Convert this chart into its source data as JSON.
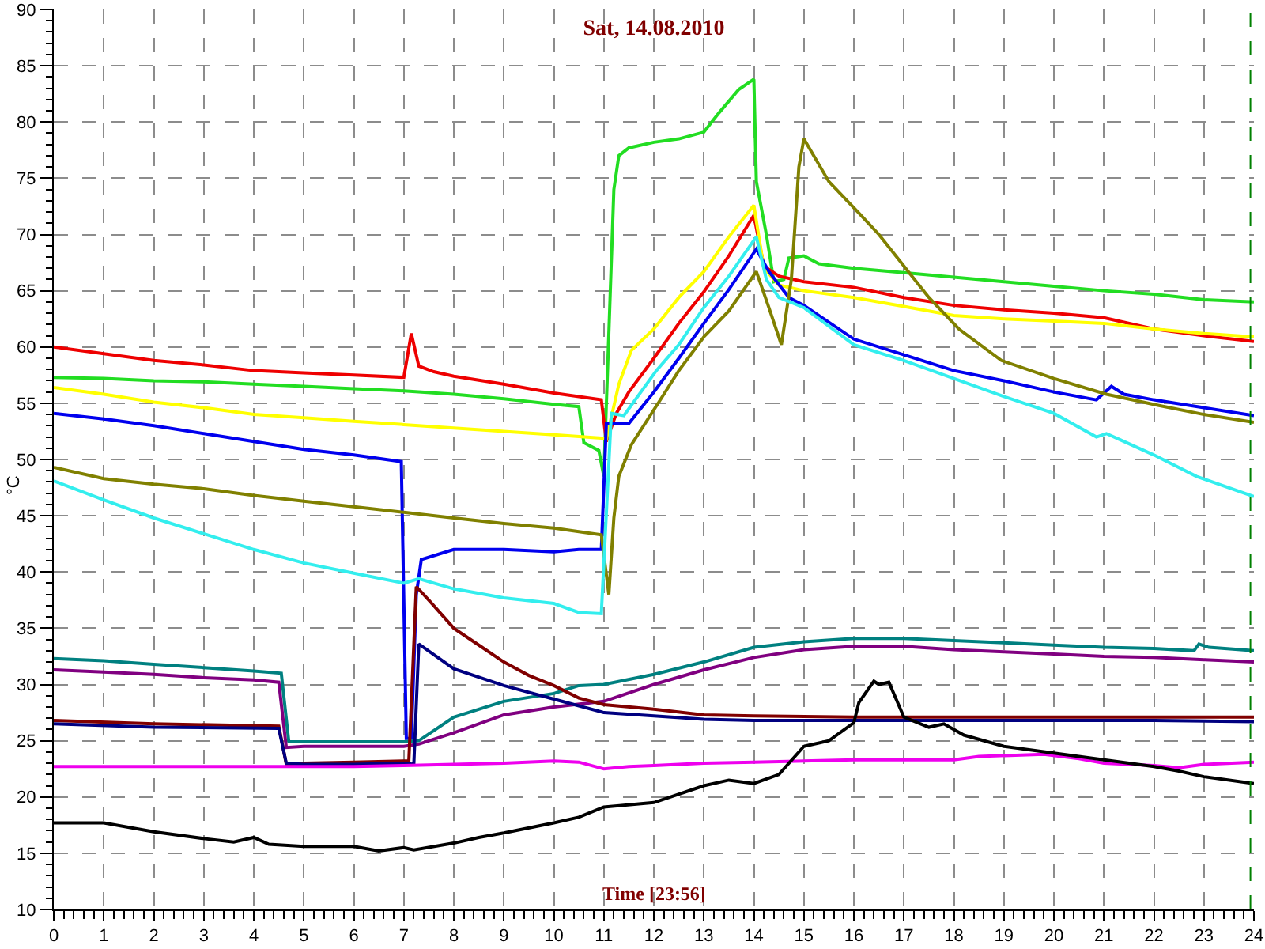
{
  "chart_data": {
    "type": "line",
    "title": "Sat, 14.08.2010",
    "xlabel": "Time [23:56]",
    "ylabel": "°C",
    "xlim": [
      0,
      24
    ],
    "xticks": [
      0,
      {
        "value": 0.2,
        "label": null
      },
      {
        "value": 0.4,
        "label": null
      },
      {
        "value": 0.6,
        "label": null
      },
      {
        "value": 0.8,
        "label": null
      },
      1,
      {
        "value": 1.2,
        "label": null
      },
      {
        "value": 1.4,
        "label": null
      },
      {
        "value": 1.6,
        "label": null
      },
      {
        "value": 1.8,
        "label": null
      },
      2,
      {
        "value": 2.2,
        "label": null
      },
      {
        "value": 2.4,
        "label": null
      },
      {
        "value": 2.6,
        "label": null
      },
      {
        "value": 2.8,
        "label": null
      },
      3,
      {
        "value": 3.2,
        "label": null
      },
      {
        "value": 3.4,
        "label": null
      },
      {
        "value": 3.6,
        "label": null
      },
      {
        "value": 3.8,
        "label": null
      },
      4,
      {
        "value": 4.2,
        "label": null
      },
      {
        "value": 4.4,
        "label": null
      },
      {
        "value": 4.6,
        "label": null
      },
      {
        "value": 4.8,
        "label": null
      },
      5,
      {
        "value": 5.2,
        "label": null
      },
      {
        "value": 5.4,
        "label": null
      },
      {
        "value": 5.6,
        "label": null
      },
      {
        "value": 5.8,
        "label": null
      },
      6,
      {
        "value": 6.2,
        "label": null
      },
      {
        "value": 6.4,
        "label": null
      },
      {
        "value": 6.6,
        "label": null
      },
      {
        "value": 6.8,
        "label": null
      },
      7,
      {
        "value": 7.2,
        "label": null
      },
      {
        "value": 7.4,
        "label": null
      },
      {
        "value": 7.6,
        "label": null
      },
      {
        "value": 7.8,
        "label": null
      },
      8,
      {
        "value": 8.2,
        "label": null
      },
      {
        "value": 8.4,
        "label": null
      },
      {
        "value": 8.6,
        "label": null
      },
      {
        "value": 8.8,
        "label": null
      },
      9,
      {
        "value": 9.2,
        "label": null
      },
      {
        "value": 9.4,
        "label": null
      },
      {
        "value": 9.6,
        "label": null
      },
      {
        "value": 9.8,
        "label": null
      },
      10,
      {
        "value": 10.2,
        "label": null
      },
      {
        "value": 10.4,
        "label": null
      },
      {
        "value": 10.6,
        "label": null
      },
      {
        "value": 10.8,
        "label": null
      },
      11,
      {
        "value": 11.2,
        "label": null
      },
      {
        "value": 11.4,
        "label": null
      },
      {
        "value": 11.6,
        "label": null
      },
      {
        "value": 11.8,
        "label": null
      },
      12,
      {
        "value": 12.2,
        "label": null
      },
      {
        "value": 12.4,
        "label": null
      },
      {
        "value": 12.6,
        "label": null
      },
      {
        "value": 12.8,
        "label": null
      },
      13,
      {
        "value": 13.2,
        "label": null
      },
      {
        "value": 13.4,
        "label": null
      },
      {
        "value": 13.6,
        "label": null
      },
      {
        "value": 13.8,
        "label": null
      },
      14,
      {
        "value": 14.2,
        "label": null
      },
      {
        "value": 14.4,
        "label": null
      },
      {
        "value": 14.6,
        "label": null
      },
      {
        "value": 14.8,
        "label": null
      },
      15,
      {
        "value": 15.2,
        "label": null
      },
      {
        "value": 15.4,
        "label": null
      },
      {
        "value": 15.6,
        "label": null
      },
      {
        "value": 15.8,
        "label": null
      },
      16,
      {
        "value": 16.2,
        "label": null
      },
      {
        "value": 16.4,
        "label": null
      },
      {
        "value": 16.6,
        "label": null
      },
      {
        "value": 16.8,
        "label": null
      },
      17,
      {
        "value": 17.2,
        "label": null
      },
      {
        "value": 17.4,
        "label": null
      },
      {
        "value": 17.6,
        "label": null
      },
      {
        "value": 17.8,
        "label": null
      },
      18,
      {
        "value": 18.2,
        "label": null
      },
      {
        "value": 18.4,
        "label": null
      },
      {
        "value": 18.6,
        "label": null
      },
      {
        "value": 18.8,
        "label": null
      },
      19,
      {
        "value": 19.2,
        "label": null
      },
      {
        "value": 19.4,
        "label": null
      },
      {
        "value": 19.6,
        "label": null
      },
      {
        "value": 19.8,
        "label": null
      },
      20,
      {
        "value": 20.2,
        "label": null
      },
      {
        "value": 20.4,
        "label": null
      },
      {
        "value": 20.6,
        "label": null
      },
      {
        "value": 20.8,
        "label": null
      },
      21,
      {
        "value": 21.2,
        "label": null
      },
      {
        "value": 21.4,
        "label": null
      },
      {
        "value": 21.6,
        "label": null
      },
      {
        "value": 21.8,
        "label": null
      },
      22,
      {
        "value": 22.2,
        "label": null
      },
      {
        "value": 22.4,
        "label": null
      },
      {
        "value": 22.6,
        "label": null
      },
      {
        "value": 22.8,
        "label": null
      },
      23,
      {
        "value": 23.2,
        "label": null
      },
      {
        "value": 23.4,
        "label": null
      },
      {
        "value": 23.6,
        "label": null
      },
      {
        "value": 23.8,
        "label": null
      },
      24
    ],
    "ylim": [
      10,
      90
    ],
    "yticks": [
      10,
      {
        "value": 11,
        "label": null
      },
      {
        "value": 12,
        "label": null
      },
      {
        "value": 13,
        "label": null
      },
      {
        "value": 14,
        "label": null
      },
      15,
      {
        "value": 16,
        "label": null
      },
      {
        "value": 17,
        "label": null
      },
      {
        "value": 18,
        "label": null
      },
      {
        "value": 19,
        "label": null
      },
      20,
      {
        "value": 21,
        "label": null
      },
      {
        "value": 22,
        "label": null
      },
      {
        "value": 23,
        "label": null
      },
      {
        "value": 24,
        "label": null
      },
      25,
      {
        "value": 26,
        "label": null
      },
      {
        "value": 27,
        "label": null
      },
      {
        "value": 28,
        "label": null
      },
      {
        "value": 29,
        "label": null
      },
      30,
      {
        "value": 31,
        "label": null
      },
      {
        "value": 32,
        "label": null
      },
      {
        "value": 33,
        "label": null
      },
      {
        "value": 34,
        "label": null
      },
      35,
      {
        "value": 36,
        "label": null
      },
      {
        "value": 37,
        "label": null
      },
      {
        "value": 38,
        "label": null
      },
      {
        "value": 39,
        "label": null
      },
      40,
      {
        "value": 41,
        "label": null
      },
      {
        "value": 42,
        "label": null
      },
      {
        "value": 43,
        "label": null
      },
      {
        "value": 44,
        "label": null
      },
      45,
      {
        "value": 46,
        "label": null
      },
      {
        "value": 47,
        "label": null
      },
      {
        "value": 48,
        "label": null
      },
      {
        "value": 49,
        "label": null
      },
      50,
      {
        "value": 51,
        "label": null
      },
      {
        "value": 52,
        "label": null
      },
      {
        "value": 53,
        "label": null
      },
      {
        "value": 54,
        "label": null
      },
      55,
      {
        "value": 56,
        "label": null
      },
      {
        "value": 57,
        "label": null
      },
      {
        "value": 58,
        "label": null
      },
      {
        "value": 59,
        "label": null
      },
      60,
      {
        "value": 61,
        "label": null
      },
      {
        "value": 62,
        "label": null
      },
      {
        "value": 63,
        "label": null
      },
      {
        "value": 64,
        "label": null
      },
      65,
      {
        "value": 66,
        "label": null
      },
      {
        "value": 67,
        "label": null
      },
      {
        "value": 68,
        "label": null
      },
      {
        "value": 69,
        "label": null
      },
      70,
      {
        "value": 71,
        "label": null
      },
      {
        "value": 72,
        "label": null
      },
      {
        "value": 73,
        "label": null
      },
      {
        "value": 74,
        "label": null
      },
      75,
      {
        "value": 76,
        "label": null
      },
      {
        "value": 77,
        "label": null
      },
      {
        "value": 78,
        "label": null
      },
      {
        "value": 79,
        "label": null
      },
      80,
      {
        "value": 81,
        "label": null
      },
      {
        "value": 82,
        "label": null
      },
      {
        "value": 83,
        "label": null
      },
      {
        "value": 84,
        "label": null
      },
      85,
      {
        "value": 86,
        "label": null
      },
      {
        "value": 87,
        "label": null
      },
      {
        "value": 88,
        "label": null
      },
      {
        "value": 89,
        "label": null
      },
      90
    ],
    "grid": true,
    "ref_lines": [
      {
        "axis": "x",
        "value": 23.93,
        "color": "#008000",
        "line_style": "dashed"
      }
    ],
    "series": [
      {
        "color": "#22dd22",
        "x": [
          0,
          1,
          2,
          3,
          4,
          5,
          6,
          7,
          8,
          9,
          10,
          10.5,
          10.6,
          10.9,
          11.0,
          11.2,
          11.3,
          11.5,
          12,
          12.5,
          13,
          13.3,
          13.7,
          14.0,
          14.05,
          14.25,
          14.4,
          14.6,
          14.7,
          15,
          15.3,
          16,
          17,
          18,
          19,
          20,
          21,
          22,
          23,
          24
        ],
        "values": [
          57.3,
          57.2,
          57,
          56.9,
          56.7,
          56.5,
          56.3,
          56.1,
          55.8,
          55.4,
          54.9,
          54.7,
          51.5,
          50.8,
          48.5,
          74,
          77,
          77.7,
          78.2,
          78.5,
          79.1,
          80.8,
          82.9,
          83.8,
          74.7,
          70,
          65.8,
          66,
          67.9,
          68.1,
          67.4,
          67,
          66.6,
          66.2,
          65.8,
          65.4,
          65,
          64.7,
          64.2,
          64
        ]
      },
      {
        "color": "#ee0000",
        "x": [
          0,
          1,
          2,
          3,
          4,
          5,
          6,
          7,
          7.15,
          7.3,
          7.6,
          8,
          9,
          10,
          10.95,
          11.05,
          11.25,
          11.5,
          12,
          12.5,
          13,
          13.5,
          14.0,
          14.2,
          14.5,
          15,
          16,
          17,
          18,
          19,
          20,
          21,
          22,
          23,
          24
        ],
        "values": [
          60,
          59.4,
          58.8,
          58.4,
          57.9,
          57.7,
          57.5,
          57.3,
          61.2,
          58.3,
          57.8,
          57.4,
          56.7,
          55.9,
          55.3,
          51.6,
          54.1,
          56,
          59,
          62.1,
          64.9,
          68.1,
          71.7,
          67.2,
          66.3,
          65.8,
          65.3,
          64.4,
          63.7,
          63.3,
          63,
          62.6,
          61.6,
          61,
          60.5
        ]
      },
      {
        "color": "#ffff00",
        "x": [
          0,
          1,
          2,
          3,
          4,
          5,
          6,
          7,
          8,
          9,
          10,
          10.95,
          11.05,
          11.3,
          11.55,
          12,
          12.5,
          13,
          13.5,
          14.0,
          14.2,
          14.5,
          15,
          16,
          17,
          18,
          19,
          20,
          21,
          22,
          23,
          24
        ],
        "values": [
          56.4,
          55.8,
          55.1,
          54.6,
          54,
          53.7,
          53.4,
          53.1,
          52.8,
          52.5,
          52.2,
          51.9,
          51.8,
          56.7,
          59.7,
          61.6,
          64.4,
          66.7,
          69.8,
          72.6,
          67,
          65.5,
          65,
          64.4,
          63.6,
          62.8,
          62.5,
          62.3,
          62.1,
          61.6,
          61.2,
          60.9
        ]
      },
      {
        "color": "#0000ee",
        "x": [
          0,
          1,
          2,
          3,
          4,
          5,
          6,
          6.95,
          7.05,
          7.15,
          7.25,
          7.35,
          8,
          9,
          10,
          10.5,
          10.95,
          11.05,
          11.5,
          12,
          12.5,
          13,
          13.5,
          14.05,
          14.3,
          14.7,
          15,
          16,
          17,
          18,
          19,
          20,
          20.85,
          21.15,
          21.4,
          22,
          23,
          24
        ],
        "values": [
          54.1,
          53.6,
          53,
          52.3,
          51.6,
          50.9,
          50.4,
          49.8,
          25.2,
          25.2,
          38,
          41.1,
          42,
          42,
          41.8,
          42,
          42,
          53.2,
          53.2,
          56,
          59,
          62.1,
          65.1,
          68.7,
          66.7,
          64.4,
          63.7,
          60.7,
          59.3,
          57.9,
          57,
          56,
          55.3,
          56.5,
          55.8,
          55.3,
          54.6,
          53.9
        ]
      },
      {
        "color": "#808000",
        "x": [
          0,
          1,
          2,
          3,
          4,
          5,
          6,
          7,
          8,
          9,
          10,
          10.95,
          11.1,
          11.2,
          11.3,
          11.55,
          12.1,
          12.5,
          13,
          13.5,
          14.05,
          14.3,
          14.55,
          14.75,
          14.9,
          15.0,
          15.5,
          16.1,
          16.5,
          17.5,
          18.1,
          18.95,
          20,
          21.05,
          22.1,
          23,
          24
        ],
        "values": [
          49.3,
          48.3,
          47.8,
          47.4,
          46.8,
          46.3,
          45.8,
          45.3,
          44.8,
          44.3,
          43.9,
          43.3,
          38,
          44.8,
          48.5,
          51.3,
          55.1,
          57.9,
          60.9,
          63.2,
          66.7,
          63.5,
          60.2,
          66,
          76,
          78.5,
          74.7,
          71.9,
          70,
          64.4,
          61.6,
          58.8,
          57.2,
          55.8,
          54.8,
          54,
          53.3
        ]
      },
      {
        "color": "#33eeee",
        "x": [
          0,
          1,
          2,
          3,
          4,
          5,
          6,
          7,
          7.3,
          8,
          9,
          10,
          10.5,
          10.95,
          11.15,
          11.4,
          12.05,
          12.5,
          13,
          13.5,
          14.05,
          14.25,
          14.5,
          15,
          16,
          17,
          18,
          19,
          20,
          20.85,
          21.05,
          21.3,
          22,
          22.85,
          24
        ],
        "values": [
          48.1,
          46.4,
          44.8,
          43.4,
          42,
          40.8,
          39.9,
          39,
          39.4,
          38.5,
          37.7,
          37.2,
          36.4,
          36.3,
          54.1,
          53.9,
          57.9,
          60.2,
          63.5,
          66.3,
          69.8,
          66,
          64.4,
          63.5,
          60.2,
          58.8,
          57.2,
          55.6,
          54.1,
          52,
          52.3,
          51.8,
          50.4,
          48.5,
          46.7
        ]
      },
      {
        "color": "#008080",
        "x": [
          0,
          1,
          2,
          3,
          4,
          4.55,
          4.7,
          5,
          6,
          7,
          7.3,
          8,
          9,
          10,
          10.5,
          11,
          12,
          13,
          14,
          15,
          16,
          17,
          18,
          19,
          20,
          21,
          22,
          22.8,
          22.9,
          23.1,
          24
        ],
        "values": [
          32.3,
          32.1,
          31.8,
          31.5,
          31.2,
          31,
          24.9,
          24.9,
          24.9,
          24.9,
          25,
          27.1,
          28.5,
          29.2,
          29.9,
          30,
          30.9,
          32,
          33.3,
          33.8,
          34.1,
          34.1,
          33.9,
          33.7,
          33.5,
          33.3,
          33.2,
          33,
          33.6,
          33.3,
          33
        ]
      },
      {
        "color": "#800080",
        "x": [
          0,
          1,
          2,
          3,
          4,
          4.5,
          4.65,
          5,
          6,
          7,
          7.3,
          8,
          9,
          10,
          11,
          12,
          13,
          14,
          15,
          16,
          17,
          18,
          19,
          20,
          21,
          22,
          23,
          24
        ],
        "values": [
          31.3,
          31.1,
          30.9,
          30.6,
          30.4,
          30.2,
          24.4,
          24.5,
          24.5,
          24.5,
          24.7,
          25.7,
          27.3,
          28,
          28.5,
          30,
          31.3,
          32.4,
          33.1,
          33.4,
          33.4,
          33.1,
          32.9,
          32.7,
          32.5,
          32.4,
          32.2,
          32
        ]
      },
      {
        "color": "#800000",
        "x": [
          0,
          2,
          4.5,
          4.65,
          5,
          6,
          7,
          7.1,
          7.25,
          7.5,
          8,
          8.5,
          9,
          9.5,
          10,
          10.5,
          11,
          12,
          13,
          14,
          16,
          18,
          20,
          22,
          24
        ],
        "values": [
          26.8,
          26.5,
          26.3,
          22.9,
          23,
          23.1,
          23.2,
          23.2,
          38.7,
          37.5,
          35,
          33.5,
          32,
          30.8,
          29.9,
          28.8,
          28.2,
          27.8,
          27.3,
          27.2,
          27.1,
          27.1,
          27.1,
          27.1,
          27.1
        ]
      },
      {
        "color": "#000080",
        "x": [
          0,
          2,
          4.5,
          4.65,
          5,
          6,
          7,
          7.2,
          7.3,
          8,
          9,
          10,
          11,
          12,
          13,
          14,
          16,
          18,
          20,
          22,
          24
        ],
        "values": [
          26.5,
          26.2,
          26.1,
          23,
          22.9,
          22.9,
          23.0,
          22.9,
          33.6,
          31.4,
          29.9,
          28.7,
          27.5,
          27.2,
          26.9,
          26.8,
          26.8,
          26.8,
          26.8,
          26.8,
          26.7
        ]
      },
      {
        "color": "#ee00ee",
        "x": [
          0,
          2,
          4,
          6,
          7,
          8,
          9,
          10,
          10.5,
          11,
          11.5,
          12,
          13,
          14,
          16,
          18,
          18.5,
          19.8,
          20.5,
          21,
          22,
          22.5,
          23,
          24
        ],
        "values": [
          22.7,
          22.7,
          22.7,
          22.7,
          22.8,
          22.9,
          23,
          23.2,
          23.1,
          22.5,
          22.7,
          22.8,
          23,
          23.1,
          23.3,
          23.3,
          23.6,
          23.8,
          23.4,
          23,
          22.8,
          22.6,
          22.9,
          23.1
        ]
      },
      {
        "color": "#000000",
        "x": [
          0,
          1,
          2,
          3,
          3.6,
          4,
          4.3,
          5,
          6,
          6.5,
          7,
          7.2,
          8,
          8.5,
          9,
          10,
          10.5,
          11,
          12,
          13,
          13.5,
          14,
          14.5,
          15,
          15.5,
          16,
          16.1,
          16.4,
          16.5,
          16.7,
          17,
          17.5,
          17.8,
          18.2,
          19,
          20,
          21,
          22,
          22.5,
          23,
          24
        ],
        "values": [
          17.7,
          17.7,
          16.9,
          16.3,
          16,
          16.4,
          15.8,
          15.6,
          15.6,
          15.2,
          15.5,
          15.3,
          15.9,
          16.4,
          16.8,
          17.7,
          18.2,
          19.1,
          19.5,
          21,
          21.5,
          21.2,
          22,
          24.5,
          25,
          26.6,
          28.4,
          30.3,
          30,
          30.2,
          27.1,
          26.2,
          26.5,
          25.5,
          24.5,
          23.9,
          23.3,
          22.7,
          22.3,
          21.8,
          21.2
        ]
      }
    ]
  }
}
